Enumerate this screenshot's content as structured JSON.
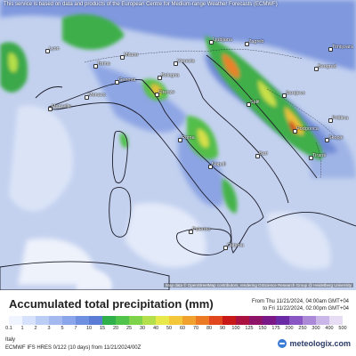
{
  "map": {
    "attribution_top": "This service is based on data and products of the European Centre for Medium-range Weather Forecasts (ECMWF)",
    "attribution_bottom": "Map data © OpenStreetMap contributors, rendering GIScience Research Group @ Heidelberg University",
    "cities": [
      {
        "name": "Lyon"
      },
      {
        "name": "Milano"
      },
      {
        "name": "Torino"
      },
      {
        "name": "Genova"
      },
      {
        "name": "Monaco"
      },
      {
        "name": "Marseille"
      },
      {
        "name": "Firenze"
      },
      {
        "name": "Bologna"
      },
      {
        "name": "Roma"
      },
      {
        "name": "Napoli"
      },
      {
        "name": "Bari"
      },
      {
        "name": "Palermo"
      },
      {
        "name": "Catania"
      },
      {
        "name": "Ljubljana"
      },
      {
        "name": "Zagreb"
      },
      {
        "name": "Beograd"
      },
      {
        "name": "Timișoara"
      },
      {
        "name": "Sarajevo"
      },
      {
        "name": "Podgorica"
      },
      {
        "name": "Priština"
      },
      {
        "name": "Skopje"
      },
      {
        "name": "Tiranë"
      },
      {
        "name": "Split"
      },
      {
        "name": "Venezia"
      }
    ]
  },
  "legend": {
    "title": "Accumulated total precipitation (mm)",
    "period_from": "From Thu 11/21/2024, 04:00am GMT+04",
    "period_to": "to Fri 11/22/2024, 02:00pm GMT+04",
    "ticks": [
      "0.1",
      "1",
      "2",
      "3",
      "5",
      "7",
      "10",
      "15",
      "20",
      "25",
      "30",
      "40",
      "50",
      "60",
      "70",
      "80",
      "90",
      "100",
      "125",
      "150",
      "175",
      "200",
      "250",
      "300",
      "400",
      "500"
    ],
    "colors": [
      "#f0f4ff",
      "#d6e2fb",
      "#bccdf5",
      "#a3b9ef",
      "#8aa5ea",
      "#6f8fe0",
      "#5a7cd4",
      "#2fb04a",
      "#4fc34a",
      "#7ed34a",
      "#b3e04a",
      "#e8e84a",
      "#f4c63a",
      "#f1a22e",
      "#ec7a24",
      "#e2461c",
      "#c81818",
      "#aa1040",
      "#8e1468",
      "#7a1888",
      "#6a2aa6",
      "#8a56c4",
      "#ab88d8",
      "#cbb6e8",
      "#e6dcf4"
    ],
    "region": "Italy",
    "model_info": "ECMWF IFS HRES 0/122 (10 days) from 11/21/2024/00Z",
    "brand": "meteologix.com"
  }
}
